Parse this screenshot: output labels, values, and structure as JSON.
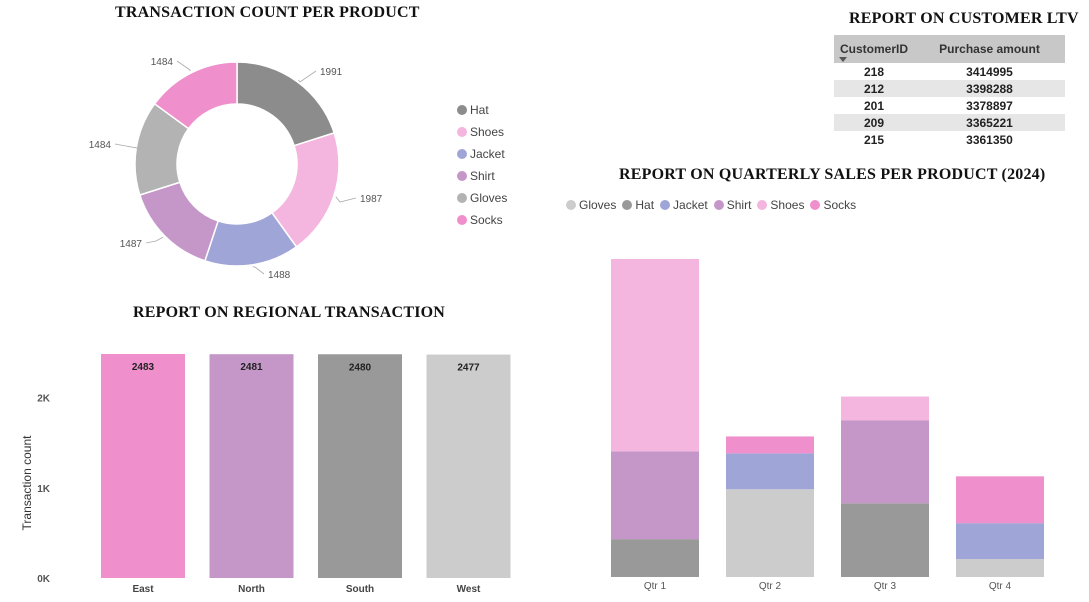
{
  "colors": {
    "Hat": "#8c8c8c",
    "Shoes": "#f4b5de",
    "Jacket": "#a0a5d8",
    "Shirt": "#c597c9",
    "Gloves": "#b3b3b3",
    "Socks": "#ef8fcc",
    "region_east": "#ef8fcc",
    "region_north": "#c597c9",
    "region_south": "#999999",
    "region_west": "#cccccc",
    "q_gloves": "#cccccc",
    "q_hat": "#999999"
  },
  "chart_data": [
    {
      "id": "donut",
      "type": "pie",
      "title": "TRANSACTION COUNT PER PRODUCT",
      "categories": [
        "Hat",
        "Shoes",
        "Jacket",
        "Shirt",
        "Gloves",
        "Socks"
      ],
      "values": [
        1991,
        1987,
        1488,
        1487,
        1484,
        1484
      ],
      "legend_position": "right"
    },
    {
      "id": "regional",
      "type": "bar",
      "title": "REPORT ON REGIONAL TRANSACTION",
      "categories": [
        "East",
        "North",
        "South",
        "West"
      ],
      "values": [
        2483,
        2481,
        2480,
        2477
      ],
      "ylabel": "Transaction count",
      "yticks": [
        "0K",
        "1K",
        "2K"
      ],
      "ylim": [
        0,
        2483
      ]
    },
    {
      "id": "quarterly",
      "type": "bar",
      "stacked": true,
      "title": "REPORT ON QUARTERLY SALES PER PRODUCT (2024)",
      "categories": [
        "Qtr 1",
        "Qtr 2",
        "Qtr 3",
        "Qtr 4"
      ],
      "legend_labels": [
        "Gloves",
        "Hat",
        "Jacket",
        "Shirt",
        "Shoes",
        "Socks"
      ],
      "series": [
        {
          "name": "Gloves",
          "values": [
            0,
            88,
            0,
            18
          ]
        },
        {
          "name": "Hat",
          "values": [
            38,
            0,
            74,
            0
          ]
        },
        {
          "name": "Jacket",
          "values": [
            0,
            36,
            0,
            36
          ]
        },
        {
          "name": "Shirt",
          "values": [
            88,
            0,
            83,
            0
          ]
        },
        {
          "name": "Shoes",
          "values": [
            193,
            0,
            24,
            0
          ]
        },
        {
          "name": "Socks",
          "values": [
            0,
            17,
            0,
            47
          ]
        }
      ],
      "ylim": [
        0,
        319
      ],
      "legend_position": "top-left"
    },
    {
      "id": "ltv",
      "type": "table",
      "title": "REPORT ON CUSTOMER LTV",
      "columns": [
        "CustomerID",
        "Purchase amount"
      ],
      "rows": [
        [
          "218",
          "3414995"
        ],
        [
          "212",
          "3398288"
        ],
        [
          "201",
          "3378897"
        ],
        [
          "209",
          "3365221"
        ],
        [
          "215",
          "3361350"
        ]
      ]
    }
  ]
}
